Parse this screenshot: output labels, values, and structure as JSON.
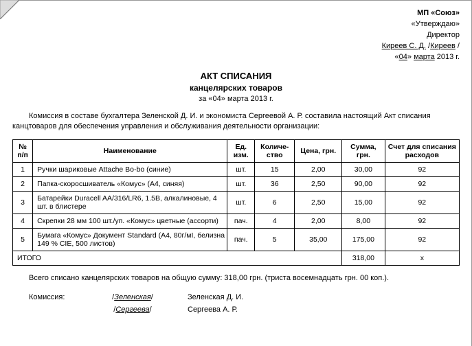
{
  "approval": {
    "org": "МП «Союз»",
    "word": "«Утверждаю»",
    "position": "Директор",
    "name": "Киреев С. Д.",
    "sign": "Киреев",
    "date_prefix": "«",
    "date_day": "04",
    "date_mid": "» ",
    "date_month": "марта",
    "date_suffix": " 2013 г."
  },
  "title": {
    "line1": "АКТ СПИСАНИЯ",
    "line2": "канцелярских товаров",
    "line3_a": "за «",
    "line3_day": "04",
    "line3_b": "» ",
    "line3_month": "марта",
    "line3_c": " 2013 г."
  },
  "intro": "Комиссия в составе бухгалтера Зеленской Д. И. и экономиста Сергеевой А. Р. составила настоящий Акт списания канцтоваров для обеспечения управления и обслуживания деятельности организации:",
  "columns": {
    "num": "№ п/п",
    "name": "Наименование",
    "unit": "Ед. изм.",
    "qty": "Количе-\nство",
    "price": "Цена, грн.",
    "sum": "Сумма, грн.",
    "acct": "Счет\nдля списания\nрасходов"
  },
  "rows": [
    {
      "n": "1",
      "name": "Ручки шариковые Attache Bo-bo (синие)",
      "unit": "шт.",
      "qty": "15",
      "price": "2,00",
      "sum": "30,00",
      "acct": "92"
    },
    {
      "n": "2",
      "name": "Папка-скоросшиватель «Комус» (А4, синяя)",
      "unit": "шт.",
      "qty": "36",
      "price": "2,50",
      "sum": "90,00",
      "acct": "92"
    },
    {
      "n": "3",
      "name": "Батарейки Duracell AA/316/LR6, 1.5В, алкалиновые, 4 шт. в блистере",
      "unit": "шт.",
      "qty": "6",
      "price": "2,50",
      "sum": "15,00",
      "acct": "92"
    },
    {
      "n": "4",
      "name": "Скрепки 28 мм 100 шт./уп. «Комус» цветные (ассорти)",
      "unit": "пач.",
      "qty": "4",
      "price": "2,00",
      "sum": "8,00",
      "acct": "92"
    },
    {
      "n": "5",
      "name": "Бумага «Комус» Документ Standard (А4, 80г/мІ, белизна 149 % CIE, 500 листов)",
      "unit": "пач.",
      "qty": "5",
      "price": "35,00",
      "sum": "175,00",
      "acct": "92"
    }
  ],
  "total": {
    "label": "ИТОГО",
    "sum": "318,00",
    "acct": "х"
  },
  "summary": "Всего списано канцелярских товаров на общую сумму: 318,00 грн. (триста восемнадцать грн. 00 коп.).",
  "signatures": {
    "label": "Комиссия:",
    "sig1": "Зеленская",
    "name1": "Зеленская Д. И.",
    "sig2": "Сергеева",
    "name2": "Сергеева А. Р."
  }
}
